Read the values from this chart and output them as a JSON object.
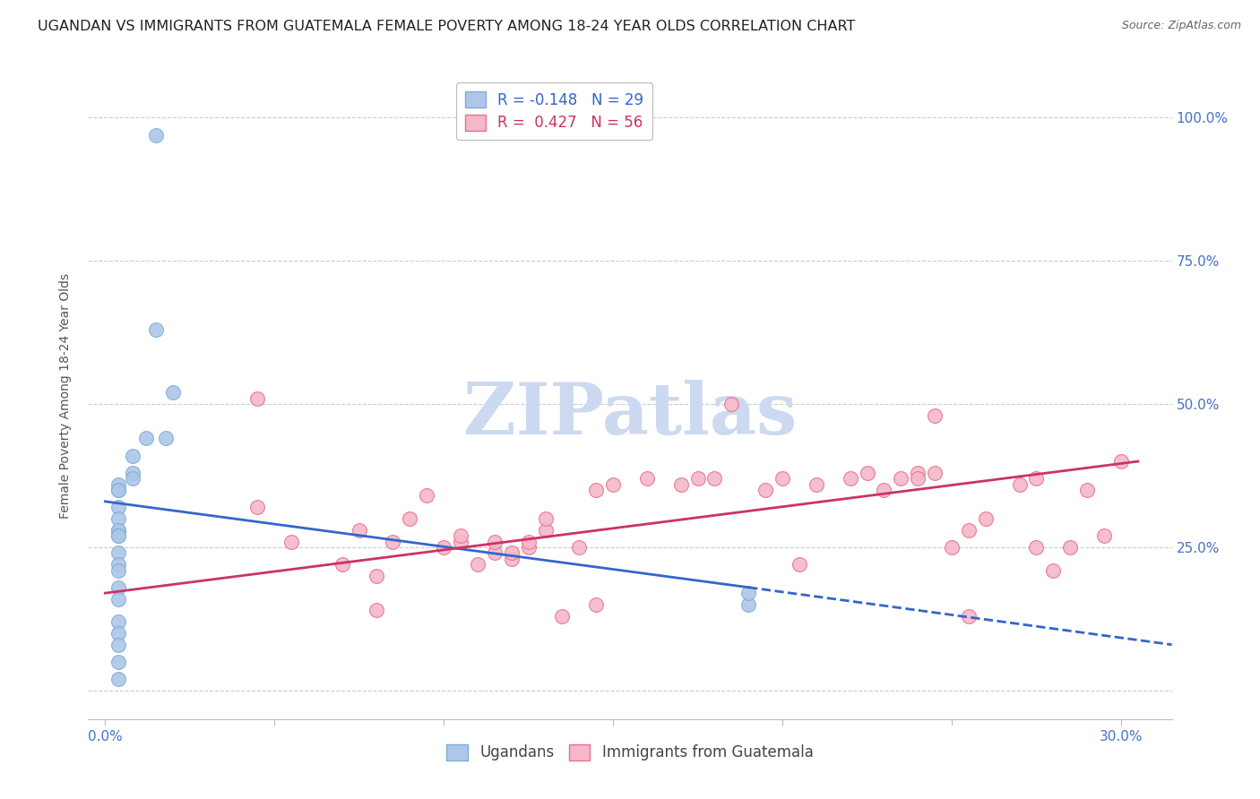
{
  "title": "UGANDAN VS IMMIGRANTS FROM GUATEMALA FEMALE POVERTY AMONG 18-24 YEAR OLDS CORRELATION CHART",
  "source": "Source: ZipAtlas.com",
  "ylabel": "Female Poverty Among 18-24 Year Olds",
  "xlim": [
    -0.5,
    31.5
  ],
  "ylim": [
    -5,
    108
  ],
  "ugandans": {
    "x": [
      1.5,
      1.5,
      2.0,
      1.8,
      1.2,
      0.8,
      0.8,
      0.8,
      0.4,
      0.4,
      0.4,
      0.4,
      0.4,
      0.4,
      0.4,
      0.4,
      0.4,
      0.4,
      0.4,
      0.4,
      0.4,
      0.4,
      0.4,
      0.4,
      0.4,
      0.4,
      0.4,
      19.0,
      19.0
    ],
    "y": [
      97,
      63,
      52,
      44,
      44,
      41,
      38,
      37,
      36,
      35,
      35,
      32,
      30,
      28,
      28,
      27,
      27,
      24,
      22,
      21,
      18,
      16,
      12,
      10,
      8,
      5,
      2,
      15,
      17
    ],
    "color": "#aec6e8",
    "edge_color": "#7bafd4",
    "label": "Ugandans",
    "R": -0.148,
    "N": 29,
    "line_color": "#3366cc",
    "reg_x0": 0.0,
    "reg_y0": 33.0,
    "reg_x1": 19.0,
    "reg_y1": 18.0,
    "dash_x0": 19.0,
    "dash_y0": 18.0,
    "dash_x1": 31.5,
    "dash_y1": 8.0
  },
  "guatemalans": {
    "x": [
      4.5,
      5.5,
      7.0,
      7.5,
      8.0,
      8.5,
      9.0,
      9.5,
      10.0,
      10.5,
      10.5,
      11.0,
      11.5,
      11.5,
      12.0,
      12.0,
      12.5,
      12.5,
      13.0,
      13.0,
      14.0,
      14.5,
      15.0,
      16.0,
      17.0,
      17.5,
      18.0,
      19.5,
      20.0,
      21.0,
      22.0,
      22.5,
      23.0,
      23.5,
      24.0,
      24.0,
      24.5,
      25.0,
      25.5,
      26.0,
      27.0,
      27.5,
      28.0,
      28.5,
      29.0,
      29.5,
      18.5,
      20.5,
      24.5,
      27.5,
      4.5,
      8.0,
      13.5,
      14.5,
      25.5,
      30.0
    ],
    "y": [
      32,
      26,
      22,
      28,
      20,
      26,
      30,
      34,
      25,
      26,
      27,
      22,
      24,
      26,
      23,
      24,
      25,
      26,
      28,
      30,
      25,
      35,
      36,
      37,
      36,
      37,
      37,
      35,
      37,
      36,
      37,
      38,
      35,
      37,
      38,
      37,
      38,
      25,
      28,
      30,
      36,
      37,
      21,
      25,
      35,
      27,
      50,
      22,
      48,
      25,
      51,
      14,
      13,
      15,
      13,
      40
    ],
    "color": "#f4b8c8",
    "edge_color": "#e87090",
    "label": "Immigrants from Guatemala",
    "R": 0.427,
    "N": 56,
    "line_color": "#cc3366",
    "reg_x0": 0.0,
    "reg_y0": 17.0,
    "reg_x1": 30.5,
    "reg_y1": 40.0
  },
  "background_color": "#ffffff",
  "watermark": "ZIPatlas",
  "watermark_color": "#ccd9f0",
  "grid_color": "#cccccc",
  "title_fontsize": 11.5,
  "axis_label_fontsize": 10,
  "tick_fontsize": 11,
  "legend_fontsize": 12,
  "right_tick_color": "#4472c4",
  "xtick_positions": [
    0,
    5,
    10,
    15,
    20,
    25,
    30
  ],
  "xtick_labels": [
    "0.0%",
    "",
    "",
    "",
    "",
    "",
    "30.0%"
  ],
  "ytick_positions": [
    0,
    25,
    50,
    75,
    100
  ],
  "ytick_labels_right": [
    "",
    "25.0%",
    "50.0%",
    "75.0%",
    "100.0%"
  ]
}
